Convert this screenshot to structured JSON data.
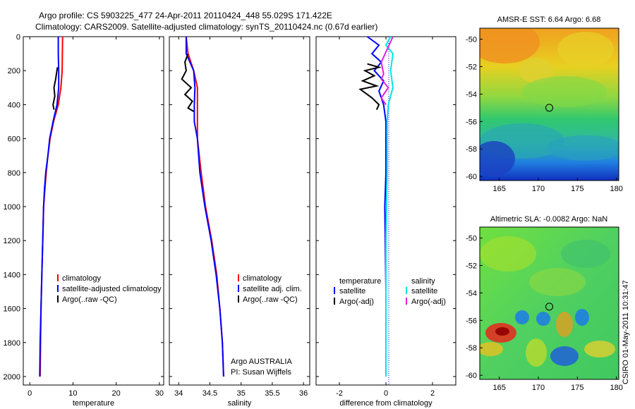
{
  "title_line1": "Argo profile: CS 5903225_477 24-Apr-2011 20110424_448 55.029S 171.422E",
  "title_line2": "Climatology: CARS2009. Satellite-adjusted climatology: synTS_20110424.nc (0.67d earlier)",
  "side_label": "CSIRO 01-May-2011 10:31:47",
  "credit_line1": "Argo AUSTRALIA",
  "credit_line2": "PI: Susan Wijffels",
  "chart_data": [
    {
      "type": "line",
      "xlabel": "temperature",
      "ylim": [
        0,
        2050
      ],
      "xlim": [
        -1.5,
        31
      ],
      "xticks": [
        0,
        10,
        20,
        30
      ],
      "yticks": [
        0,
        200,
        400,
        600,
        800,
        1000,
        1200,
        1400,
        1600,
        1800,
        2000
      ],
      "legend": [
        "climatology",
        "satellite-adjusted climatology",
        "Argo(..raw -QC)"
      ],
      "series": [
        {
          "name": "climatology",
          "color": "#ff0000",
          "points": [
            [
              7.6,
              0
            ],
            [
              7.5,
              200
            ],
            [
              7.2,
              300
            ],
            [
              6.6,
              400
            ],
            [
              5.5,
              500
            ],
            [
              4.7,
              600
            ],
            [
              4.2,
              700
            ],
            [
              3.8,
              800
            ],
            [
              3.5,
              900
            ],
            [
              3.2,
              1000
            ],
            [
              3.0,
              1200
            ],
            [
              2.8,
              1400
            ],
            [
              2.6,
              1600
            ],
            [
              2.5,
              1800
            ],
            [
              2.4,
              2000
            ]
          ]
        },
        {
          "name": "satellite-adjusted climatology",
          "color": "#0000ff",
          "points": [
            [
              6.6,
              0
            ],
            [
              6.6,
              100
            ],
            [
              6.7,
              200
            ],
            [
              6.7,
              300
            ],
            [
              6.3,
              400
            ],
            [
              5.4,
              500
            ],
            [
              4.6,
              600
            ],
            [
              4.2,
              700
            ],
            [
              3.7,
              800
            ],
            [
              3.4,
              900
            ],
            [
              3.2,
              1000
            ],
            [
              3.0,
              1200
            ],
            [
              2.8,
              1400
            ],
            [
              2.6,
              1600
            ],
            [
              2.4,
              1800
            ],
            [
              2.3,
              2000
            ]
          ]
        },
        {
          "name": "Argo(..raw -QC)",
          "color": "#000000",
          "points": [
            [
              6.4,
              180
            ],
            [
              6.0,
              250
            ],
            [
              5.6,
              300
            ],
            [
              5.8,
              350
            ],
            [
              5.4,
              400
            ],
            [
              5.6,
              430
            ]
          ]
        }
      ]
    },
    {
      "type": "line",
      "xlabel": "salinity",
      "ylim": [
        0,
        2050
      ],
      "xlim": [
        33.85,
        36.1
      ],
      "xticks": [
        34,
        34.5,
        35,
        35.5,
        36
      ],
      "legend": [
        "climatology",
        "satellite adj. clim.",
        "Argo(..raw -QC)"
      ],
      "series": [
        {
          "name": "climatology",
          "color": "#ff0000",
          "points": [
            [
              34.12,
              0
            ],
            [
              34.15,
              100
            ],
            [
              34.24,
              200
            ],
            [
              34.3,
              300
            ],
            [
              34.3,
              400
            ],
            [
              34.3,
              600
            ],
            [
              34.36,
              800
            ],
            [
              34.43,
              1000
            ],
            [
              34.53,
              1200
            ],
            [
              34.61,
              1400
            ],
            [
              34.66,
              1600
            ],
            [
              34.7,
              1800
            ],
            [
              34.72,
              2000
            ]
          ]
        },
        {
          "name": "satellite adj. clim.",
          "color": "#0000ff",
          "points": [
            [
              34.12,
              0
            ],
            [
              34.12,
              100
            ],
            [
              34.24,
              200
            ],
            [
              34.26,
              300
            ],
            [
              34.25,
              400
            ],
            [
              34.25,
              500
            ],
            [
              34.3,
              600
            ],
            [
              34.34,
              800
            ],
            [
              34.42,
              1000
            ],
            [
              34.52,
              1200
            ],
            [
              34.6,
              1400
            ],
            [
              34.66,
              1600
            ],
            [
              34.7,
              1800
            ],
            [
              34.72,
              2000
            ]
          ]
        },
        {
          "name": "Argo(..raw -QC)",
          "color": "#000000",
          "points": [
            [
              34.15,
              100
            ],
            [
              34.1,
              150
            ],
            [
              34.12,
              200
            ],
            [
              34.05,
              250
            ],
            [
              34.2,
              300
            ],
            [
              34.1,
              340
            ],
            [
              34.22,
              380
            ],
            [
              34.15,
              420
            ],
            [
              34.24,
              440
            ]
          ]
        }
      ]
    },
    {
      "type": "line",
      "xlabel": "difference from climatology",
      "ylim": [
        0,
        2050
      ],
      "xlim": [
        -3,
        3
      ],
      "xticks": [
        -2,
        0,
        2
      ],
      "legend": [
        "temperature",
        "satellite",
        "Argo(-adj)",
        "salinity",
        "satellite",
        "Argo(-adj)"
      ],
      "series": [
        {
          "name": "temperature satellite",
          "color": "#0000ff",
          "points": [
            [
              -0.8,
              0
            ],
            [
              -0.3,
              50
            ],
            [
              -0.6,
              100
            ],
            [
              -0.2,
              150
            ],
            [
              -0.5,
              200
            ],
            [
              -0.1,
              260
            ],
            [
              -0.3,
              320
            ],
            [
              -0.1,
              400
            ],
            [
              0,
              500
            ],
            [
              0,
              800
            ],
            [
              -0.05,
              1000
            ],
            [
              0,
              1500
            ],
            [
              0,
              2000
            ]
          ]
        },
        {
          "name": "temperature Argo(-adj)",
          "color": "#000000",
          "points": [
            [
              -0.8,
              160
            ],
            [
              -0.3,
              180
            ],
            [
              -0.9,
              200
            ],
            [
              -0.5,
              230
            ],
            [
              -1.0,
              260
            ],
            [
              -0.4,
              290
            ],
            [
              -1.1,
              310
            ],
            [
              -0.6,
              360
            ],
            [
              -0.3,
              400
            ],
            [
              -0.4,
              430
            ]
          ]
        },
        {
          "name": "salinity satellite",
          "color": "#00e5e5",
          "points": [
            [
              0.2,
              0
            ],
            [
              0.0,
              50
            ],
            [
              0.3,
              100
            ],
            [
              0.2,
              200
            ],
            [
              0.3,
              300
            ],
            [
              0.1,
              400
            ],
            [
              0.05,
              500
            ],
            [
              0.05,
              800
            ],
            [
              0,
              1200
            ],
            [
              0,
              2000
            ]
          ]
        },
        {
          "name": "salinity Argo(-adj)",
          "color": "#e020e0",
          "points": [
            [
              0.3,
              0
            ],
            [
              0.1,
              60
            ],
            [
              -0.2,
              150
            ],
            [
              -0.1,
              220
            ],
            [
              -0.2,
              250
            ],
            [
              0.1,
              300
            ],
            [
              -0.2,
              360
            ],
            [
              0.0,
              400
            ]
          ]
        }
      ]
    }
  ],
  "maps": [
    {
      "title": "AMSR-E SST: 6.64 Argo: 6.68",
      "xticks": [
        165,
        170,
        175,
        180
      ],
      "yticks": [
        -50,
        -52,
        -54,
        -56,
        -58,
        -60
      ],
      "marker": [
        171.4,
        -55.0
      ]
    },
    {
      "title": "Altimetric SLA: -0.0082 Argo: NaN",
      "xticks": [
        165,
        170,
        175,
        180
      ],
      "yticks": [
        -50,
        -52,
        -54,
        -56,
        -58,
        -60
      ],
      "marker": [
        171.4,
        -55.0
      ]
    }
  ],
  "colors": {
    "climatology": "#ff0000",
    "satellite": "#0000ff",
    "argo": "#000000",
    "sal_sat": "#00e5e5",
    "sal_argo": "#e020e0"
  }
}
